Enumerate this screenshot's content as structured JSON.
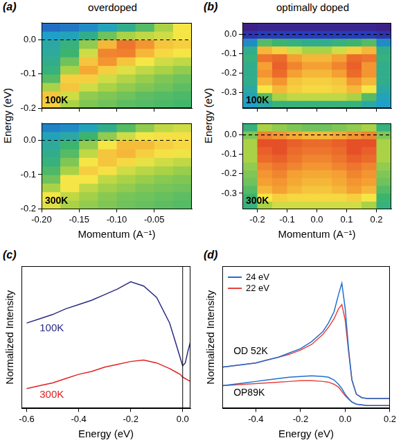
{
  "chart_data": [
    {
      "type": "heatmap",
      "panel": "(a)",
      "title": "overdoped",
      "xlabel": "Momentum (A⁻¹)",
      "ylabel": "Energy (eV)",
      "xlim": [
        -0.2,
        0
      ],
      "xticks": [
        {
          "value": -0.2,
          "label": "-0.20"
        },
        -0.15,
        {
          "value": -0.1,
          "label": "-0.10"
        },
        -0.05
      ],
      "ylim": [
        -0.2,
        0.05
      ],
      "yticks": [
        {
          "value": 0,
          "label": "0.0"
        },
        -0.1,
        -0.2
      ],
      "xbins": [
        -0.2,
        -0.175,
        -0.15,
        -0.125,
        -0.1,
        -0.075,
        -0.05,
        -0.025,
        0
      ],
      "ybins": [
        -0.2,
        -0.175,
        -0.15,
        -0.125,
        -0.1,
        -0.075,
        -0.05,
        -0.025,
        0,
        0.025,
        0.05
      ],
      "zlim": [
        0,
        1
      ],
      "hlines": [
        0
      ],
      "line_style": "dashed",
      "maps": [
        {
          "name": "100K",
          "tick_labels": "y",
          "z": [
            [
              0.6,
              0.45,
              0.4,
              0.38,
              0.36,
              0.35,
              0.34,
              0.33
            ],
            [
              0.62,
              0.5,
              0.42,
              0.4,
              0.38,
              0.36,
              0.35,
              0.34
            ],
            [
              0.45,
              0.62,
              0.5,
              0.45,
              0.42,
              0.4,
              0.38,
              0.36
            ],
            [
              0.35,
              0.6,
              0.6,
              0.5,
              0.46,
              0.43,
              0.4,
              0.38
            ],
            [
              0.3,
              0.45,
              0.68,
              0.6,
              0.52,
              0.48,
              0.45,
              0.42
            ],
            [
              0.28,
              0.38,
              0.62,
              0.72,
              0.62,
              0.55,
              0.5,
              0.48
            ],
            [
              0.26,
              0.32,
              0.5,
              0.75,
              0.76,
              0.65,
              0.58,
              0.55
            ],
            [
              0.25,
              0.3,
              0.42,
              0.65,
              0.78,
              0.72,
              0.62,
              0.6
            ],
            [
              0.2,
              0.22,
              0.28,
              0.38,
              0.45,
              0.48,
              0.5,
              0.55
            ],
            [
              0.15,
              0.16,
              0.18,
              0.22,
              0.28,
              0.35,
              0.45,
              0.55
            ]
          ]
        },
        {
          "name": "300K",
          "z": [
            [
              0.52,
              0.45,
              0.42,
              0.4,
              0.38,
              0.37,
              0.36,
              0.35
            ],
            [
              0.55,
              0.48,
              0.44,
              0.41,
              0.39,
              0.38,
              0.37,
              0.36
            ],
            [
              0.45,
              0.55,
              0.48,
              0.44,
              0.42,
              0.4,
              0.39,
              0.38
            ],
            [
              0.38,
              0.55,
              0.55,
              0.48,
              0.45,
              0.43,
              0.41,
              0.4
            ],
            [
              0.34,
              0.45,
              0.6,
              0.56,
              0.5,
              0.47,
              0.45,
              0.43
            ],
            [
              0.3,
              0.4,
              0.55,
              0.62,
              0.58,
              0.53,
              0.5,
              0.48
            ],
            [
              0.28,
              0.35,
              0.48,
              0.62,
              0.65,
              0.6,
              0.56,
              0.54
            ],
            [
              0.26,
              0.32,
              0.42,
              0.55,
              0.64,
              0.64,
              0.6,
              0.58
            ],
            [
              0.22,
              0.25,
              0.32,
              0.42,
              0.5,
              0.55,
              0.56,
              0.56
            ],
            [
              0.17,
              0.18,
              0.22,
              0.28,
              0.35,
              0.42,
              0.48,
              0.5
            ]
          ]
        }
      ]
    },
    {
      "type": "heatmap",
      "panel": "(b)",
      "title": "optimally doped",
      "xlabel": "Momentum (A⁻¹)",
      "ylabel": "Energy (eV)",
      "xlim": [
        -0.25,
        0.25
      ],
      "xticks": [
        -0.2,
        -0.1,
        {
          "value": 0,
          "label": "0.0"
        },
        0.1,
        0.2
      ],
      "ylim": [
        -0.38,
        0.06
      ],
      "yticks": [
        {
          "value": 0,
          "label": "0.0"
        },
        -0.1,
        -0.2,
        -0.3
      ],
      "xbins": [
        -0.25,
        -0.2,
        -0.15,
        -0.1,
        -0.05,
        0,
        0.05,
        0.1,
        0.15,
        0.2,
        0.25
      ],
      "ybins": [
        -0.38,
        -0.34,
        -0.3,
        -0.26,
        -0.22,
        -0.18,
        -0.14,
        -0.1,
        -0.06,
        -0.02,
        0.02,
        0.06
      ],
      "zlim": [
        0,
        1
      ],
      "hlines": [
        0
      ],
      "line_style": "dashed",
      "maps": [
        {
          "name": "100K",
          "tick_labels": "y",
          "z": [
            [
              0.2,
              0.25,
              0.3,
              0.3,
              0.3,
              0.3,
              0.3,
              0.3,
              0.25,
              0.2
            ],
            [
              0.22,
              0.35,
              0.45,
              0.48,
              0.48,
              0.48,
              0.48,
              0.45,
              0.35,
              0.22
            ],
            [
              0.25,
              0.55,
              0.65,
              0.6,
              0.58,
              0.58,
              0.6,
              0.65,
              0.55,
              0.25
            ],
            [
              0.28,
              0.65,
              0.72,
              0.62,
              0.6,
              0.6,
              0.62,
              0.72,
              0.65,
              0.28
            ],
            [
              0.28,
              0.72,
              0.8,
              0.7,
              0.65,
              0.65,
              0.7,
              0.8,
              0.72,
              0.28
            ],
            [
              0.28,
              0.7,
              0.82,
              0.75,
              0.7,
              0.7,
              0.75,
              0.82,
              0.72,
              0.28
            ],
            [
              0.3,
              0.78,
              0.8,
              0.7,
              0.65,
              0.65,
              0.7,
              0.8,
              0.78,
              0.3
            ],
            [
              0.28,
              0.65,
              0.6,
              0.5,
              0.45,
              0.45,
              0.5,
              0.6,
              0.65,
              0.28
            ],
            [
              0.18,
              0.35,
              0.32,
              0.3,
              0.28,
              0.28,
              0.3,
              0.32,
              0.35,
              0.18
            ],
            [
              0.08,
              0.1,
              0.1,
              0.1,
              0.1,
              0.1,
              0.1,
              0.1,
              0.1,
              0.08
            ],
            [
              0.03,
              0.04,
              0.04,
              0.04,
              0.04,
              0.04,
              0.04,
              0.04,
              0.04,
              0.03
            ]
          ]
        },
        {
          "name": "300K",
          "z": [
            [
              0.3,
              0.45,
              0.5,
              0.5,
              0.5,
              0.5,
              0.5,
              0.5,
              0.45,
              0.3
            ],
            [
              0.32,
              0.55,
              0.6,
              0.58,
              0.58,
              0.58,
              0.58,
              0.6,
              0.55,
              0.32
            ],
            [
              0.35,
              0.65,
              0.7,
              0.65,
              0.62,
              0.62,
              0.65,
              0.7,
              0.65,
              0.35
            ],
            [
              0.38,
              0.7,
              0.72,
              0.68,
              0.65,
              0.65,
              0.68,
              0.72,
              0.7,
              0.38
            ],
            [
              0.4,
              0.72,
              0.75,
              0.7,
              0.68,
              0.68,
              0.7,
              0.75,
              0.72,
              0.4
            ],
            [
              0.42,
              0.75,
              0.78,
              0.75,
              0.72,
              0.72,
              0.75,
              0.78,
              0.75,
              0.42
            ],
            [
              0.45,
              0.8,
              0.82,
              0.78,
              0.75,
              0.75,
              0.78,
              0.82,
              0.8,
              0.45
            ],
            [
              0.45,
              0.82,
              0.85,
              0.8,
              0.78,
              0.78,
              0.8,
              0.85,
              0.82,
              0.45
            ],
            [
              0.45,
              0.85,
              0.85,
              0.82,
              0.8,
              0.8,
              0.82,
              0.85,
              0.85,
              0.45
            ],
            [
              0.4,
              0.75,
              0.72,
              0.68,
              0.65,
              0.65,
              0.68,
              0.72,
              0.75,
              0.4
            ],
            [
              0.3,
              0.45,
              0.42,
              0.4,
              0.38,
              0.38,
              0.4,
              0.42,
              0.45,
              0.3
            ]
          ]
        }
      ]
    },
    {
      "type": "line",
      "panel": "(c)",
      "xlabel": "Energy (eV)",
      "ylabel": "Normalized Intensity",
      "xlim": [
        -0.62,
        0.03
      ],
      "xticks": [
        -0.6,
        -0.4,
        -0.2,
        {
          "value": 0,
          "label": "0.0"
        }
      ],
      "ylim": [
        0,
        1
      ],
      "tick_labels": "x",
      "vlines": [
        0
      ],
      "x": [
        -0.6,
        -0.55,
        -0.5,
        -0.45,
        -0.4,
        -0.35,
        -0.3,
        -0.25,
        -0.2,
        -0.15,
        -0.1,
        -0.05,
        -0.03,
        -0.01,
        0,
        0.01,
        0.02,
        0.03
      ],
      "series": [
        {
          "name": "100K",
          "color": "#2a2a80",
          "values": [
            0.6,
            0.63,
            0.66,
            0.7,
            0.73,
            0.76,
            0.8,
            0.84,
            0.89,
            0.86,
            0.78,
            0.6,
            0.48,
            0.36,
            0.3,
            0.32,
            0.4,
            0.47
          ]
        },
        {
          "name": "300K",
          "color": "#e02020",
          "values": [
            0.14,
            0.16,
            0.18,
            0.21,
            0.24,
            0.26,
            0.29,
            0.31,
            0.33,
            0.34,
            0.32,
            0.28,
            0.26,
            0.24,
            0.22,
            0.21,
            0.2,
            0.19
          ]
        }
      ]
    },
    {
      "type": "line",
      "panel": "(d)",
      "xlabel": "Energy (eV)",
      "ylabel": "Normalized Intensity",
      "xlim": [
        -0.55,
        0.2
      ],
      "xticks": [
        -0.4,
        -0.2,
        {
          "value": 0,
          "label": "0.0"
        },
        0.2
      ],
      "ylim": [
        0,
        1
      ],
      "tick_labels": "x",
      "legend": "top left",
      "x": [
        -0.55,
        -0.5,
        -0.45,
        -0.4,
        -0.35,
        -0.3,
        -0.25,
        -0.2,
        -0.15,
        -0.1,
        -0.075,
        -0.05,
        -0.03,
        -0.015,
        0,
        0.015,
        0.03,
        0.05,
        0.075,
        0.1,
        0.15,
        0.2
      ],
      "series": [
        {
          "name": "24 eV",
          "group": "OD 52K",
          "color": "#1f6fd0",
          "values": [
            0.29,
            0.3,
            0.31,
            0.32,
            0.34,
            0.36,
            0.39,
            0.42,
            0.47,
            0.54,
            0.6,
            0.68,
            0.8,
            0.88,
            0.7,
            0.42,
            0.2,
            0.1,
            0.075,
            0.07,
            0.07,
            0.07
          ]
        },
        {
          "name": "22 eV",
          "group": "OD 52K",
          "color": "#e8403a",
          "values": [
            0.29,
            0.3,
            0.31,
            0.32,
            0.34,
            0.36,
            0.38,
            0.41,
            0.45,
            0.52,
            0.57,
            0.63,
            0.7,
            0.73,
            0.62,
            0.4,
            0.2,
            0.1,
            0.075,
            0.07,
            0.07,
            0.07
          ]
        },
        {
          "name": "24 eV",
          "group": "OP89K",
          "color": "#1f6fd0",
          "values": [
            0.16,
            0.17,
            0.18,
            0.19,
            0.2,
            0.21,
            0.22,
            0.225,
            0.23,
            0.225,
            0.22,
            0.2,
            0.17,
            0.14,
            0.1,
            0.07,
            0.045,
            0.03,
            0.025,
            0.02,
            0.02,
            0.02
          ]
        },
        {
          "name": "22 eV",
          "group": "OP89K",
          "color": "#e8403a",
          "values": [
            0.16,
            0.165,
            0.17,
            0.175,
            0.18,
            0.185,
            0.19,
            0.195,
            0.195,
            0.19,
            0.185,
            0.17,
            0.15,
            0.12,
            0.09,
            0.065,
            0.045,
            0.03,
            0.025,
            0.02,
            0.02,
            0.02
          ]
        }
      ]
    }
  ]
}
